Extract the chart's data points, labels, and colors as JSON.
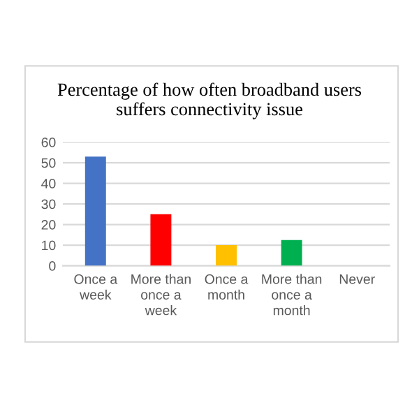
{
  "chart_data": {
    "type": "bar",
    "title": "Percentage of how often broadband users suffers connectivity issue",
    "categories": [
      "Once a week",
      "More than once a week",
      "Once a month",
      "More than once a month",
      "Never"
    ],
    "values": [
      53,
      25,
      10,
      12.5,
      0
    ],
    "colors": [
      "#4472c4",
      "#ff0000",
      "#ffc000",
      "#00b050",
      "#7f7f7f"
    ],
    "ylim": [
      0,
      60
    ],
    "yticks": [
      0,
      10,
      20,
      30,
      40,
      50,
      60
    ],
    "grid": "y",
    "legend": false
  }
}
